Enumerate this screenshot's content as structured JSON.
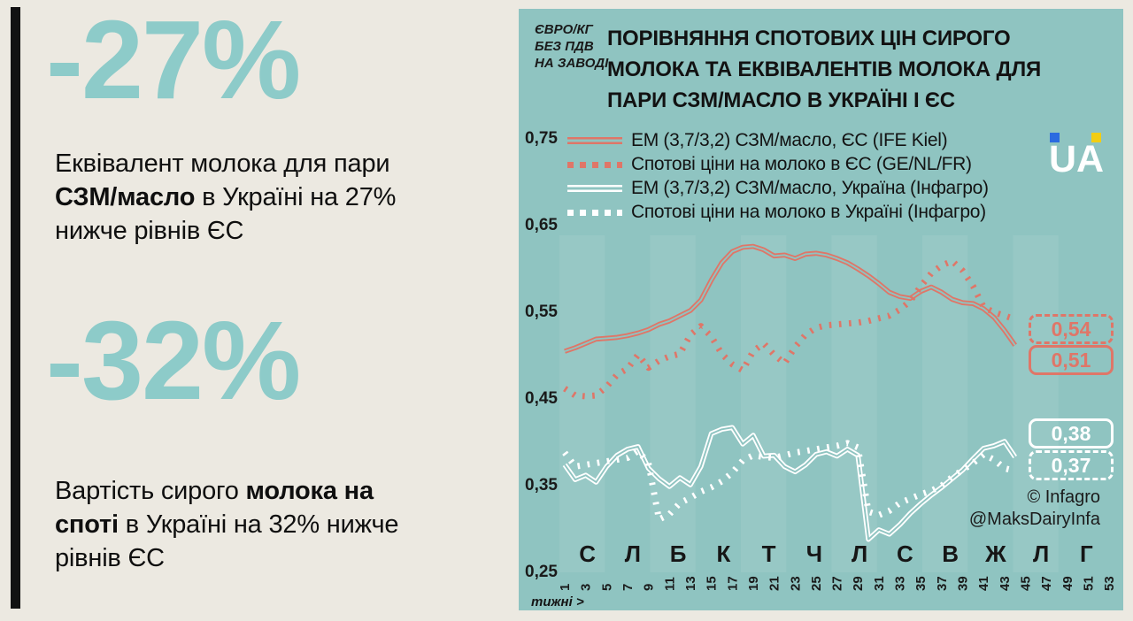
{
  "left_panel": {
    "stat1": {
      "value": "-27%",
      "desc_lines": [
        [
          {
            "t": "Еквівалент молока для пари"
          }
        ],
        [
          {
            "t": "СЗМ/масло",
            "b": 1
          },
          {
            "t": " в Україні на 27%"
          }
        ],
        [
          {
            "t": "нижче рівнів ЄС"
          }
        ]
      ]
    },
    "stat2": {
      "value": "-32%",
      "desc_lines": [
        [
          {
            "t": "Вартість сирого "
          },
          {
            "t": "молока на",
            "b": 1
          }
        ],
        [
          {
            "t": "споті",
            "b": 1
          },
          {
            "t": " в Україні на 32% нижче"
          }
        ],
        [
          {
            "t": "рівнів ЄС"
          }
        ]
      ]
    }
  },
  "chart": {
    "unit_lines": [
      [
        {
          "t": "ЄВРО/КГ"
        }
      ],
      [
        {
          "t": "БЕЗ ПДВ"
        }
      ],
      [
        {
          "t": "НА ЗАВОДІ"
        }
      ]
    ],
    "title_lines": [
      [
        {
          "t": "ПОРІВНЯННЯ СПОТОВИХ ЦІН СИРОГО"
        }
      ],
      [
        {
          "t": "МОЛОКА ТА ЕКВІВАЛЕНТІВ МОЛОКА ДЛЯ"
        }
      ],
      [
        {
          "t": "ПАРИ СЗМ/МАСЛО В УКРАЇНІ І ЄС"
        }
      ]
    ],
    "logo_text": "UA",
    "x_axis_label": "тижні >",
    "credits": [
      "© Infagro",
      "@MaksDairyInfa"
    ]
  },
  "chart_data": {
    "type": "line",
    "title": "ПОРІВНЯННЯ СПОТОВИХ ЦІН СИРОГО МОЛОКА ТА ЕКВІВАЛЕНТІВ МОЛОКА ДЛЯ ПАРИ СЗМ/МАСЛО В УКРАЇНІ І ЄС",
    "unit": "ЄВРО/КГ БЕЗ ПДВ НА ЗАВОДІ",
    "xlabel": "тижні >",
    "x_tick_weeks": [
      1,
      3,
      5,
      7,
      9,
      11,
      13,
      15,
      17,
      19,
      21,
      23,
      25,
      27,
      29,
      31,
      33,
      35,
      37,
      39,
      41,
      43,
      45,
      47,
      49,
      51,
      53
    ],
    "x_weeks_total": 53,
    "month_labels": [
      "С",
      "Л",
      "Б",
      "К",
      "Т",
      "Ч",
      "Л",
      "С",
      "В",
      "Ж",
      "Л",
      "Г"
    ],
    "ylim": [
      0.25,
      0.75
    ],
    "yticks": [
      0.75,
      0.65,
      0.55,
      0.45,
      0.35,
      0.25
    ],
    "ytick_labels": [
      "0,75",
      "0,65",
      "0,55",
      "0,45",
      "0,35",
      "0,25"
    ],
    "grid": "off",
    "legend_position": "top-left",
    "colors": {
      "eu": "#df7668",
      "ua": "#ffffff",
      "panel": "#8fc4c1",
      "stripe_light": "rgba(255,255,255,0.08)"
    },
    "series": [
      {
        "name": "ЕМ (3,7/3,2) СЗМ/масло, ЄС (IFE Kiel)",
        "style": "double",
        "color": "#df7668",
        "end_label": "0,51",
        "start_week": 1,
        "values": [
          0.503,
          0.507,
          0.512,
          0.517,
          0.518,
          0.519,
          0.521,
          0.524,
          0.528,
          0.534,
          0.538,
          0.544,
          0.55,
          0.562,
          0.585,
          0.605,
          0.618,
          0.623,
          0.624,
          0.62,
          0.613,
          0.614,
          0.61,
          0.615,
          0.616,
          0.614,
          0.61,
          0.605,
          0.598,
          0.59,
          0.581,
          0.571,
          0.566,
          0.564,
          0.572,
          0.577,
          0.571,
          0.563,
          0.559,
          0.558,
          0.552,
          0.542,
          0.527,
          0.51
        ]
      },
      {
        "name": "Спотові ціни на молоко в ЄС (GE/NL/FR)",
        "style": "dotted",
        "color": "#df7668",
        "end_label": "0,54",
        "start_week": 1,
        "values": [
          0.46,
          0.452,
          0.451,
          0.452,
          0.462,
          0.476,
          0.483,
          0.499,
          0.484,
          0.492,
          0.497,
          0.5,
          0.522,
          0.532,
          0.52,
          0.5,
          0.488,
          0.481,
          0.503,
          0.512,
          0.499,
          0.489,
          0.508,
          0.522,
          0.53,
          0.533,
          0.534,
          0.535,
          0.536,
          0.538,
          0.541,
          0.544,
          0.551,
          0.561,
          0.578,
          0.593,
          0.602,
          0.607,
          0.596,
          0.578,
          0.554,
          0.548,
          0.544,
          0.54
        ]
      },
      {
        "name": "ЕМ (3,7/3,2) СЗМ/масло, Україна (Інфагро)",
        "style": "double",
        "color": "#ffffff",
        "end_label": "0,38",
        "start_week": 1,
        "values": [
          0.372,
          0.355,
          0.36,
          0.352,
          0.37,
          0.383,
          0.39,
          0.393,
          0.368,
          0.356,
          0.347,
          0.357,
          0.349,
          0.37,
          0.408,
          0.413,
          0.415,
          0.396,
          0.406,
          0.382,
          0.383,
          0.37,
          0.364,
          0.372,
          0.384,
          0.387,
          0.382,
          0.39,
          0.383,
          0.286,
          0.297,
          0.292,
          0.303,
          0.316,
          0.327,
          0.337,
          0.346,
          0.356,
          0.366,
          0.379,
          0.391,
          0.394,
          0.399,
          0.381
        ]
      },
      {
        "name": "Спотові ціни на молоко в Україні (Інфагро)",
        "style": "dotted",
        "color": "#ffffff",
        "end_label": "0,37",
        "start_week": 1,
        "values": [
          0.386,
          0.37,
          0.372,
          0.374,
          0.376,
          0.378,
          0.38,
          0.388,
          0.374,
          0.309,
          0.315,
          0.328,
          0.334,
          0.341,
          0.346,
          0.353,
          0.363,
          0.377,
          0.383,
          0.381,
          0.38,
          0.383,
          0.386,
          0.388,
          0.39,
          0.392,
          0.394,
          0.397,
          0.392,
          0.318,
          0.314,
          0.319,
          0.328,
          0.333,
          0.338,
          0.342,
          0.348,
          0.358,
          0.366,
          0.374,
          0.384,
          0.378,
          0.368,
          0.365
        ]
      }
    ],
    "callouts": [
      {
        "label": "0,54",
        "color": "#df7668",
        "dashed": true,
        "series": "Спотові ціни на молоко в ЄС (GE/NL/FR)"
      },
      {
        "label": "0,51",
        "color": "#df7668",
        "dashed": false,
        "series": "ЕМ (3,7/3,2) СЗМ/масло, ЄС (IFE Kiel)"
      },
      {
        "label": "0,38",
        "color": "#ffffff",
        "dashed": false,
        "series": "ЕМ (3,7/3,2) СЗМ/масло, Україна (Інфагро)"
      },
      {
        "label": "0,37",
        "color": "#ffffff",
        "dashed": true,
        "series": "Спотові ціни на молоко в Україні (Інфагро)"
      }
    ],
    "credits": [
      "© Infagro",
      "@MaksDairyInfa"
    ]
  }
}
